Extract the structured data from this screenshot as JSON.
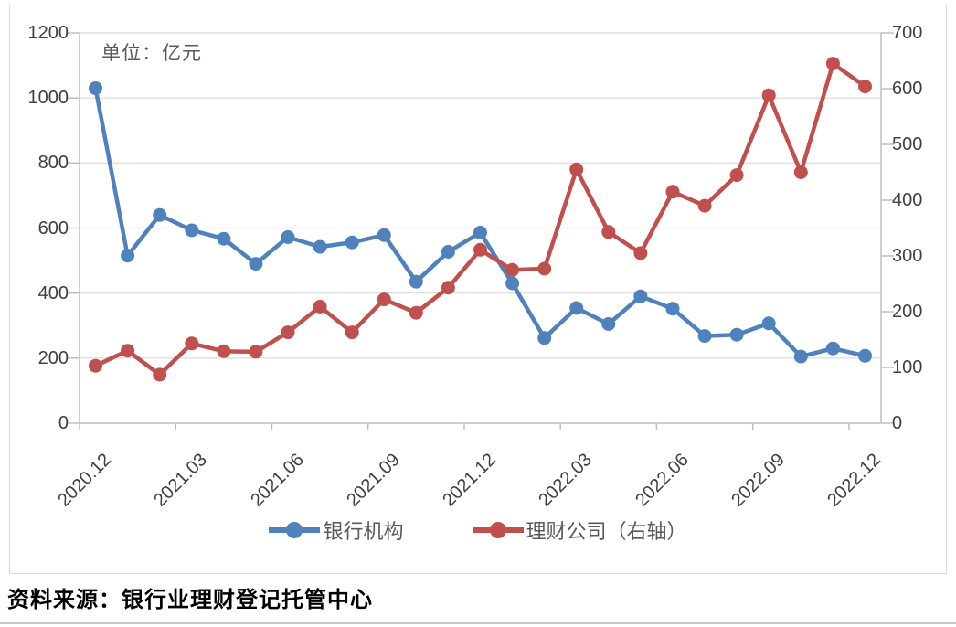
{
  "page": {
    "source_note": "资料来源：银行业理财登记托管中心"
  },
  "chart_data": {
    "type": "line",
    "annotation": "单位：亿元",
    "categories": [
      "2020.12",
      "2021.01",
      "2021.02",
      "2021.03",
      "2021.04",
      "2021.05",
      "2021.06",
      "2021.07",
      "2021.08",
      "2021.09",
      "2021.10",
      "2021.11",
      "2021.12",
      "2022.01",
      "2022.02",
      "2022.03",
      "2022.04",
      "2022.05",
      "2022.06",
      "2022.07",
      "2022.08",
      "2022.09",
      "2022.10",
      "2022.11",
      "2022.12"
    ],
    "x_axis": {
      "label_every": 3,
      "tick_every": 3
    },
    "left_axis": {
      "min": 0,
      "max": 1200,
      "step": 200,
      "tick_labels": [
        "1200",
        "1000",
        "800",
        "600",
        "400",
        "200",
        "0"
      ]
    },
    "right_axis": {
      "min": 0,
      "max": 700,
      "step": 100,
      "tick_labels": [
        "700",
        "600",
        "500",
        "400",
        "300",
        "200",
        "100",
        "0"
      ]
    },
    "series": [
      {
        "name": "银行机构",
        "axis": "left",
        "color": "#4F81BD",
        "marker": "circle",
        "values": [
          1030,
          515,
          640,
          593,
          567,
          490,
          572,
          542,
          556,
          578,
          435,
          527,
          586,
          430,
          262,
          354,
          305,
          390,
          352,
          268,
          272,
          307,
          205,
          230,
          207
        ]
      },
      {
        "name": "理财公司（右轴）",
        "axis": "right",
        "color": "#C0504D",
        "marker": "circle",
        "values": [
          103,
          130,
          87,
          143,
          129,
          128,
          163,
          209,
          163,
          222,
          198,
          243,
          311,
          275,
          277,
          455,
          343,
          305,
          415,
          390,
          445,
          588,
          450,
          645,
          604
        ]
      }
    ],
    "legend_position": "bottom",
    "grid": "horizontal-left-axis",
    "colors": {
      "gridline": "#D9D9D9",
      "axis_line": "#BFBFBF",
      "tick_label": "#404040",
      "annotation": "#595959",
      "frame_border": "#D9D9D9",
      "divider": "#C9C9C9",
      "background": "#FFFFFF"
    }
  }
}
